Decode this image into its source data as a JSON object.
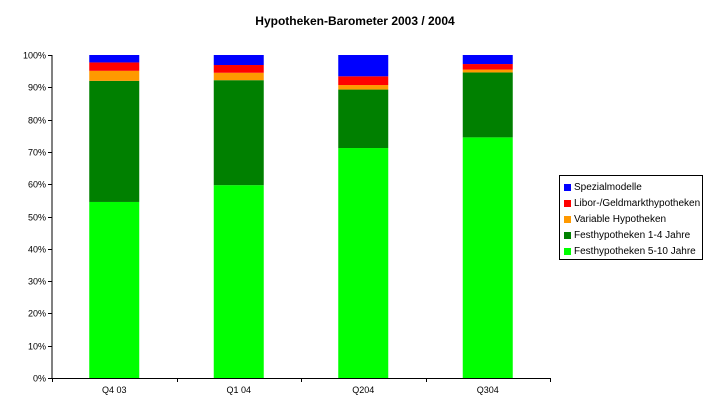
{
  "chart_data": {
    "type": "bar",
    "stacked": true,
    "title": "Hypotheken-Barometer 2003 / 2004",
    "xlabel": "",
    "ylabel": "",
    "categories": [
      "Q4 03",
      "Q1 04",
      "Q204",
      "Q304"
    ],
    "ylim": [
      0,
      100
    ],
    "yticks": [
      "0%",
      "10%",
      "20%",
      "30%",
      "40%",
      "50%",
      "60%",
      "70%",
      "80%",
      "90%",
      "100%"
    ],
    "grid": false,
    "legend_position": "right",
    "series": [
      {
        "name": "Festhypotheken 5-10 Jahre",
        "color": "#00ff00",
        "values": [
          54.5,
          59.7,
          71.2,
          74.5
        ]
      },
      {
        "name": "Festhypotheken 1-4 Jahre",
        "color": "#008000",
        "values": [
          37.5,
          32.5,
          18.1,
          20.1
        ]
      },
      {
        "name": "Variable Hypotheken",
        "color": "#ff9900",
        "values": [
          3.1,
          2.3,
          1.4,
          0.9
        ]
      },
      {
        "name": "Libor-/Geldmarkthypotheken",
        "color": "#ff0000",
        "values": [
          2.6,
          2.4,
          2.7,
          1.7
        ]
      },
      {
        "name": "Spezialmodelle",
        "color": "#0000ff",
        "values": [
          2.3,
          3.1,
          6.6,
          2.8
        ]
      }
    ],
    "legend_order": [
      "Spezialmodelle",
      "Libor-/Geldmarkthypotheken",
      "Variable Hypotheken",
      "Festhypotheken 1-4 Jahre",
      "Festhypotheken 5-10 Jahre"
    ]
  }
}
